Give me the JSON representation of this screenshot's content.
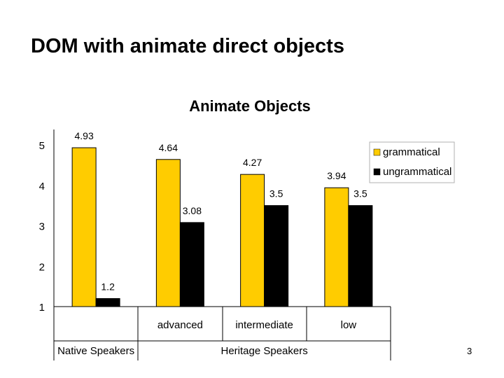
{
  "slide": {
    "title": "DOM with animate direct objects",
    "page_number": "3"
  },
  "chart_data": {
    "type": "bar",
    "title": "Animate Objects",
    "categories": [
      "",
      "advanced",
      "intermediate",
      "low"
    ],
    "groups": [
      {
        "label": "Native Speakers",
        "categories": [
          ""
        ]
      },
      {
        "label": "Heritage Speakers",
        "categories": [
          "advanced",
          "intermediate",
          "low"
        ]
      }
    ],
    "series": [
      {
        "name": "grammatical",
        "values": [
          4.93,
          4.64,
          4.27,
          3.94
        ],
        "color": "#FFCC00"
      },
      {
        "name": "ungrammatical",
        "values": [
          1.2,
          3.08,
          3.5,
          3.5
        ],
        "color": "#000000"
      }
    ],
    "data_labels": [
      [
        "4.93",
        "4.64",
        "4.27",
        "3.94"
      ],
      [
        "1.2",
        "3.08",
        "3.5",
        "3.5"
      ]
    ],
    "ylim": [
      1,
      5
    ],
    "yticks": [
      "1",
      "2",
      "3",
      "4",
      "5"
    ],
    "xlabel": "",
    "ylabel": "",
    "grid": false,
    "legend_position": "right"
  }
}
